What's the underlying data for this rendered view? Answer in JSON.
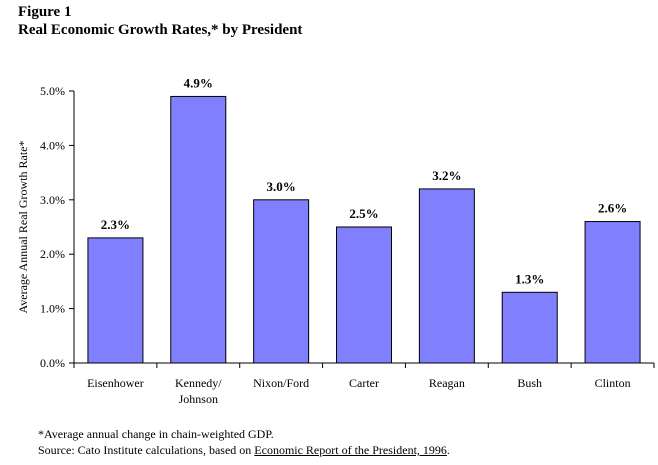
{
  "figure": {
    "label": "Figure 1",
    "title": "Real Economic Growth Rates,* by President"
  },
  "chart_data": {
    "type": "bar",
    "categories": [
      "Eisenhower",
      "Kennedy/\nJohnson",
      "Nixon/Ford",
      "Carter",
      "Reagan",
      "Bush",
      "Clinton"
    ],
    "values": [
      2.3,
      4.9,
      3.0,
      2.5,
      3.2,
      1.3,
      2.6
    ],
    "data_labels": [
      "2.3%",
      "4.9%",
      "3.0%",
      "2.5%",
      "3.2%",
      "1.3%",
      "2.6%"
    ],
    "ylabel": "Average Annual Real Growth Rate*",
    "xlabel": "",
    "ylim": [
      0,
      5
    ],
    "yticks": [
      0,
      1,
      2,
      3,
      4,
      5
    ],
    "ytick_labels": [
      "0.0%",
      "1.0%",
      "2.0%",
      "3.0%",
      "4.0%",
      "5.0%"
    ],
    "bar_color": "#8080ff",
    "grid": false,
    "legend": false
  },
  "notes": {
    "footnote": "*Average annual change in chain-weighted GDP.",
    "source_prefix": "Source: Cato Institute calculations, based on ",
    "source_title": "Economic Report of the President, 1996",
    "source_suffix": "."
  }
}
